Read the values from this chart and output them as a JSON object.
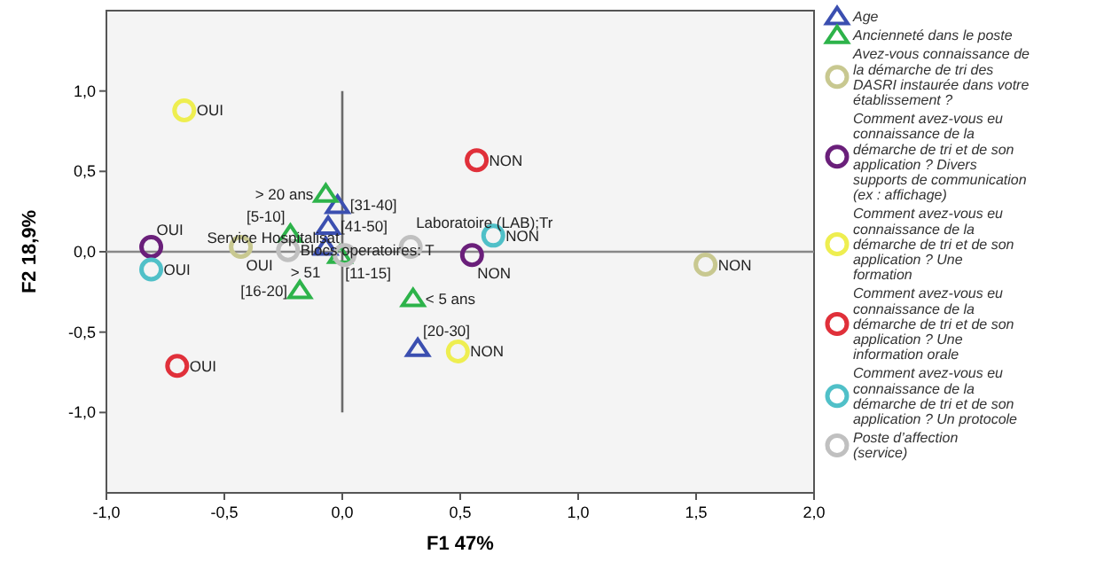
{
  "chart_data": {
    "type": "scatter",
    "xlabel": "F1 47%",
    "ylabel": "F2 18,9%",
    "xlim": [
      -1,
      2
    ],
    "ylim": [
      -1.5,
      1.5
    ],
    "xticks": [
      {
        "value": -1,
        "label": "-1,0"
      },
      {
        "value": -0.5,
        "label": "-0,5"
      },
      {
        "value": 0,
        "label": "0,0"
      },
      {
        "value": 0.5,
        "label": "0,5"
      },
      {
        "value": 1,
        "label": "1,0"
      },
      {
        "value": 1.5,
        "label": "1,5"
      },
      {
        "value": 2,
        "label": "2,0"
      }
    ],
    "yticks": [
      {
        "value": -1,
        "label": "-1,0"
      },
      {
        "value": -0.5,
        "label": "-0,5"
      },
      {
        "value": 0,
        "label": "0,0"
      },
      {
        "value": 0.5,
        "label": "0,5"
      },
      {
        "value": 1,
        "label": "1,0"
      }
    ],
    "grid": false,
    "legend": "right",
    "ref_lines": [
      {
        "axis": "x",
        "value": 0,
        "color": "#6a6a6a"
      },
      {
        "axis": "y",
        "value": 0,
        "color": "#888888"
      }
    ],
    "series": [
      {
        "name": "Age",
        "color": "#3b4fb0",
        "marker": "triangle",
        "x": [
          -0.02,
          -0.06,
          -0.07,
          0.32
        ],
        "values": [
          0.29,
          0.16,
          0.03,
          -0.6
        ],
        "value_labels": [
          "[31-40]",
          "[41-50]",
          "> 51",
          "[20-30]"
        ]
      },
      {
        "name": "Ancienneté  dans le poste",
        "color": "#2db34a",
        "marker": "triangle",
        "x": [
          -0.07,
          -0.22,
          -0.01,
          -0.18,
          0.3
        ],
        "values": [
          0.36,
          0.11,
          -0.02,
          -0.24,
          -0.29
        ],
        "value_labels": [
          "> 20 ans",
          "[5-10]",
          "[11-15]",
          "[16-20]",
          "< 5 ans"
        ]
      },
      {
        "name": "Avez-vous connaissance de la démarche de tri des DASRI instaurée dans votre établissement ?",
        "color": "#c8c890",
        "marker": "circle",
        "x": [
          -0.43,
          1.54
        ],
        "values": [
          0.03,
          -0.08
        ],
        "value_labels": [
          "OUI",
          "NON"
        ]
      },
      {
        "name": "Comment avez-vous eu connaissance de la démarche de tri et de son application ? Divers supports de communication (ex : affichage)",
        "color": "#6a1f7a",
        "marker": "circle",
        "x": [
          -0.81,
          0.55
        ],
        "values": [
          0.03,
          -0.02
        ],
        "value_labels": [
          "OUI",
          "NON"
        ]
      },
      {
        "name": "Comment avez-vous eu connaissance de la démarche de tri et de son application ? Une formation",
        "color": "#eeee50",
        "marker": "circle",
        "x": [
          -0.67,
          0.49
        ],
        "values": [
          0.88,
          -0.62
        ],
        "value_labels": [
          "OUI",
          "NON"
        ]
      },
      {
        "name": "Comment avez-vous eu connaissance de la démarche de tri et de son application ? Une information orale",
        "color": "#e0303a",
        "marker": "circle",
        "x": [
          0.57,
          -0.7
        ],
        "values": [
          0.57,
          -0.71
        ],
        "value_labels": [
          "NON",
          "OUI"
        ]
      },
      {
        "name": "Comment avez-vous eu connaissance de la démarche de tri et de son application ? Un protocole",
        "color": "#50c0c8",
        "marker": "circle",
        "x": [
          0.64,
          -0.81
        ],
        "values": [
          0.1,
          -0.11
        ],
        "value_labels": [
          "NON",
          "OUI"
        ]
      },
      {
        "name": "Poste d’affection (service)",
        "color": "#c0c0c0",
        "marker": "circle",
        "x": [
          -0.23,
          0.29,
          0.01
        ],
        "values": [
          0.01,
          0.03,
          -0.02
        ],
        "value_labels": [
          "Blocs operatoires: T",
          "Laboratoire (LAB);Tr",
          "Service Hospitalisat"
        ]
      }
    ]
  }
}
